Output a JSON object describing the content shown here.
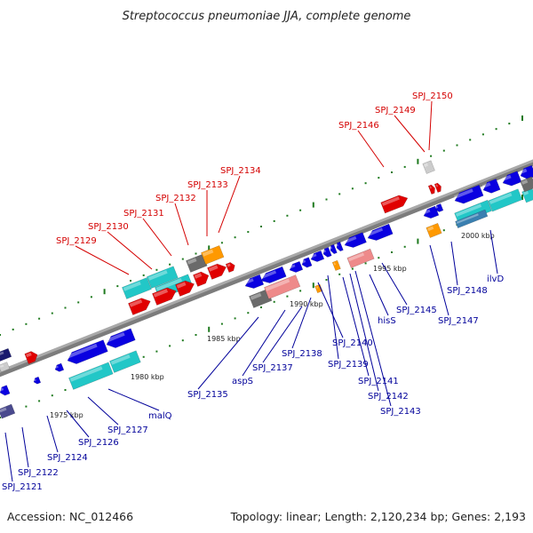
{
  "title": "Streptococcus pneumoniae JJA, complete genome",
  "footer": {
    "accession": "Accession: NC_012466",
    "stats": "Topology: linear; Length: 2,120,234 bp; Genes: 2,193"
  },
  "colors": {
    "red_label": "#d40000",
    "blue_label": "#00009a",
    "forward_gene": "#e00000",
    "reverse_gene": "#0a00e0",
    "cyan_feature": "#22c7c7",
    "pink_feature": "#ee8a8a",
    "gray_feature": "#6a6a6a",
    "orange_feature": "#ff9900",
    "navy_feature": "#4a4a8e",
    "tick_green": "#1f7a1f"
  },
  "scale_labels": [
    "1975 kbp",
    "1980 kbp",
    "1985 kbp",
    "1990 kbp",
    "1995 kbp",
    "2000 kbp"
  ],
  "gene_labels": {
    "top": [
      "SPJ_2129",
      "SPJ_2130",
      "SPJ_2131",
      "SPJ_2132",
      "SPJ_2133",
      "SPJ_2134",
      "SPJ_2146",
      "SPJ_2149",
      "SPJ_2150"
    ],
    "bottom": [
      "SPJ_2121",
      "SPJ_2122",
      "SPJ_2124",
      "SPJ_2126",
      "SPJ_2127",
      "malQ",
      "SPJ_2135",
      "aspS",
      "SPJ_2137",
      "SPJ_2138",
      "SPJ_2140",
      "SPJ_2139",
      "SPJ_2141",
      "SPJ_2142",
      "SPJ_2143",
      "hisS",
      "SPJ_2145",
      "SPJ_2147",
      "SPJ_2148",
      "ilvD"
    ]
  }
}
